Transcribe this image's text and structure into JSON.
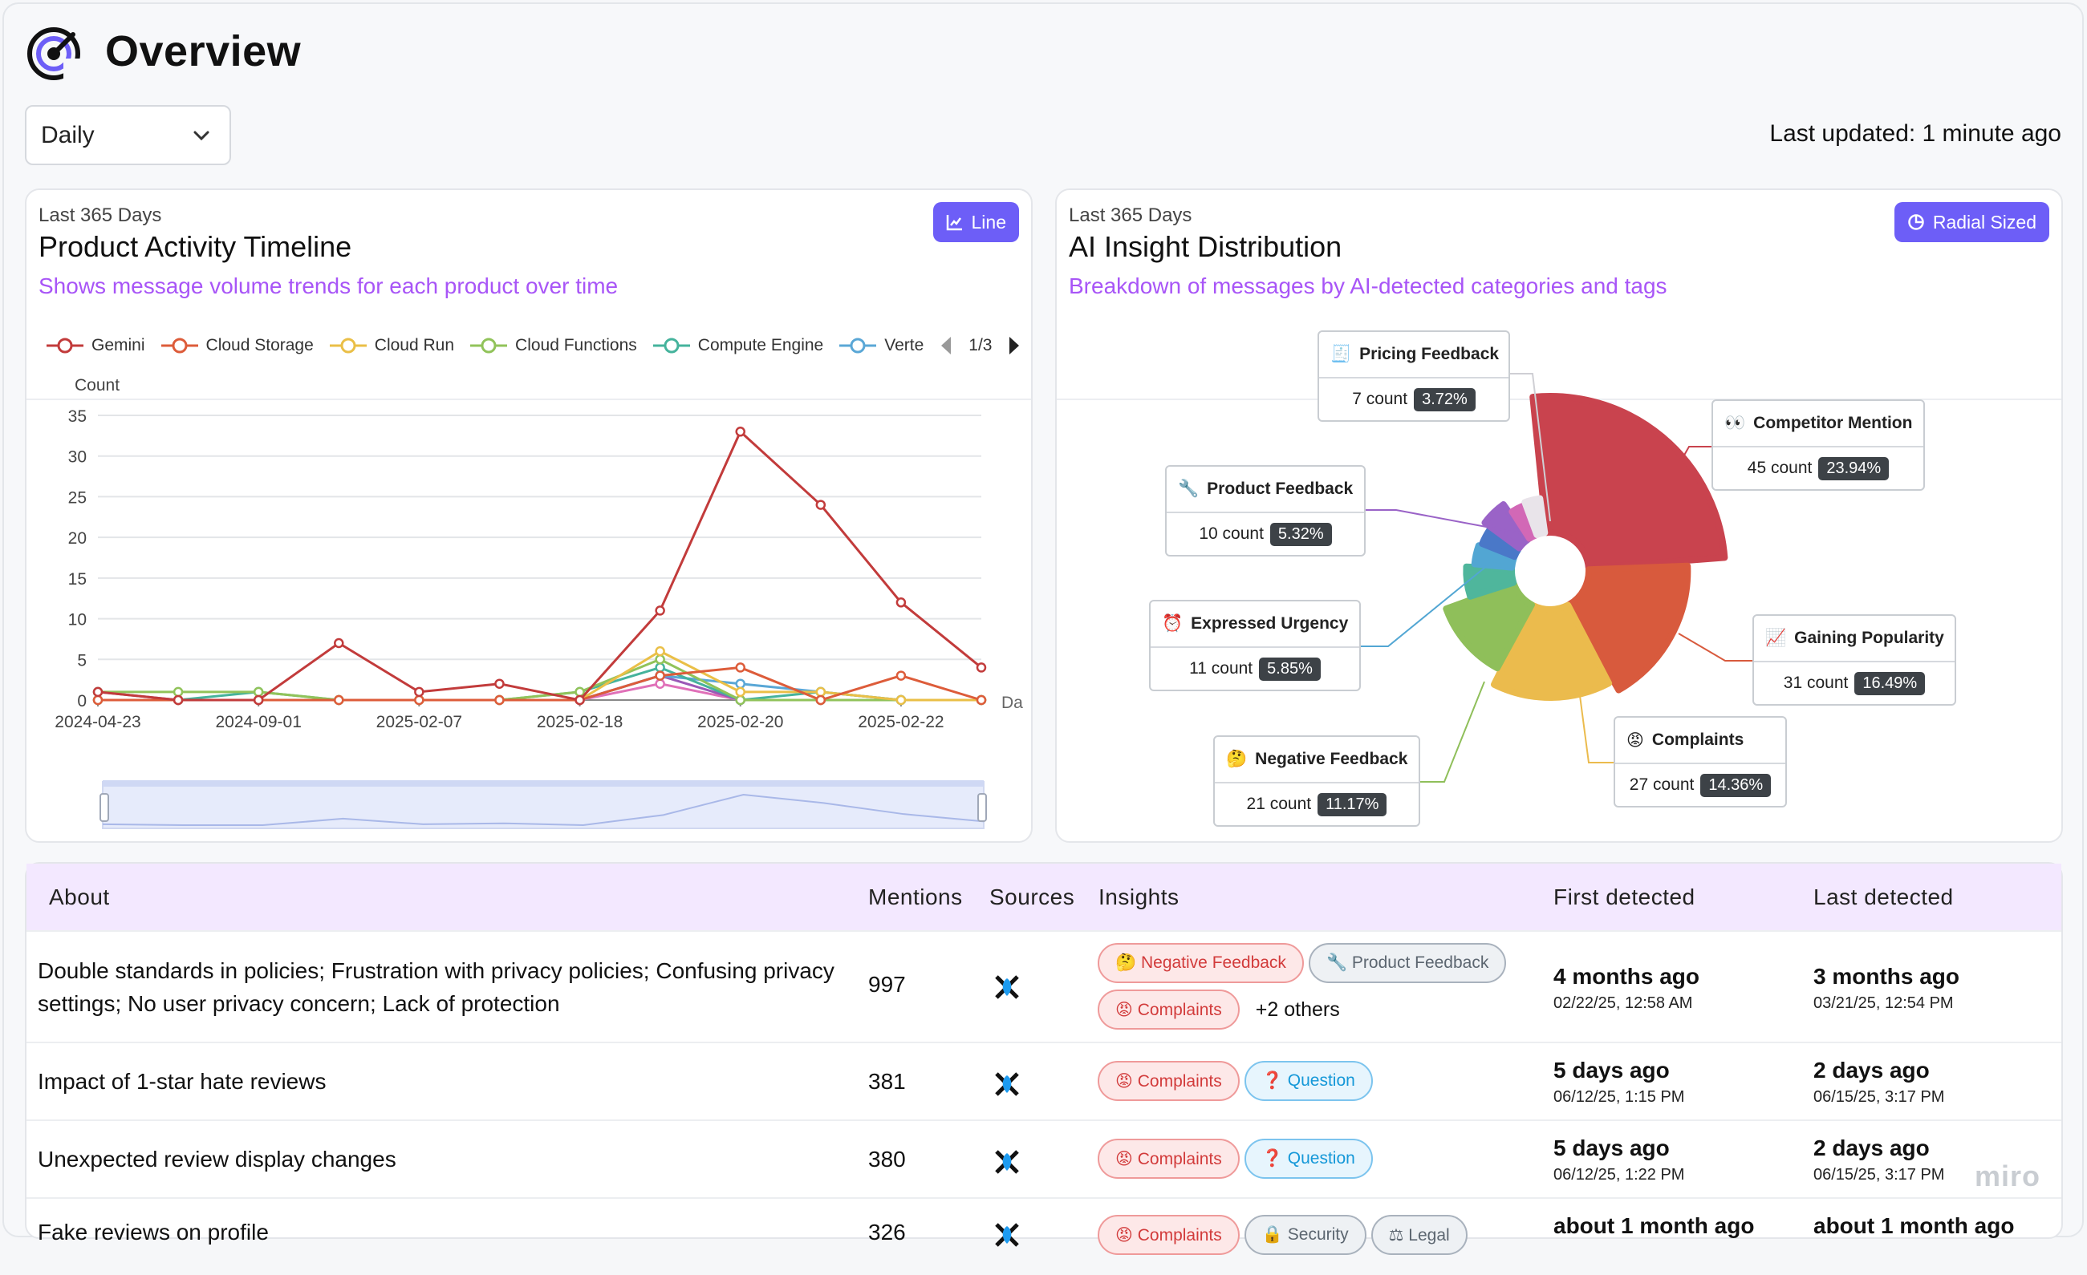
{
  "header": {
    "title": "Overview"
  },
  "controls": {
    "period_select": "Daily",
    "last_updated": "Last updated: 1 minute ago"
  },
  "timeline": {
    "subtitle": "Last 365 Days",
    "title": "Product Activity Timeline",
    "description": "Shows message volume trends for each product over time",
    "chart_type_button": "Line",
    "legend_page": "1/3",
    "chart_data": {
      "type": "line",
      "ylabel": "Count",
      "xlabel": "Da",
      "ylim": [
        0,
        35
      ],
      "yticks": [
        0,
        5,
        10,
        15,
        20,
        25,
        30,
        35
      ],
      "x_labels": [
        "2024-04-23",
        "2024-09-01",
        "2025-02-07",
        "2025-02-18",
        "2025-02-20",
        "2025-02-22"
      ],
      "series": [
        {
          "name": "Gemini",
          "color": "#c23b3b",
          "values": [
            1,
            0,
            0,
            7,
            1,
            2,
            0,
            11,
            33,
            24,
            12,
            4
          ]
        },
        {
          "name": "Cloud Storage",
          "color": "#dd5c3a",
          "values": [
            0,
            0,
            0,
            0,
            0,
            0,
            0,
            3,
            4,
            0,
            3,
            0
          ]
        },
        {
          "name": "Cloud Run",
          "color": "#eabf47",
          "values": [
            0,
            0,
            0,
            0,
            0,
            0,
            0,
            6,
            1,
            1,
            0,
            0
          ]
        },
        {
          "name": "Cloud Functions",
          "color": "#91c35a",
          "values": [
            1,
            1,
            1,
            0,
            0,
            0,
            1,
            5,
            0,
            0,
            0,
            0
          ]
        },
        {
          "name": "Compute Engine",
          "color": "#45b39c",
          "values": [
            0,
            0,
            1,
            0,
            0,
            0,
            1,
            4,
            0,
            1,
            0,
            0
          ]
        },
        {
          "name": "Verte",
          "color": "#5aa7d6",
          "values": [
            0,
            0,
            0,
            0,
            0,
            0,
            0,
            3,
            2,
            1,
            0,
            0
          ]
        },
        {
          "name": "",
          "color": "#9b59b6",
          "values": [
            1,
            0,
            0,
            0,
            0,
            0,
            0,
            3,
            0,
            0,
            0,
            0
          ]
        },
        {
          "name": "",
          "color": "#e070b8",
          "values": [
            0,
            0,
            0,
            0,
            0,
            0,
            0,
            2,
            0,
            0,
            0,
            0
          ]
        }
      ]
    }
  },
  "insights": {
    "subtitle": "Last 365 Days",
    "title": "AI Insight Distribution",
    "description": "Breakdown of messages by AI-detected categories and tags",
    "chart_type_button": "Radial Sized",
    "chart_data": {
      "type": "pie",
      "slices": [
        {
          "label": "Competitor Mention",
          "count": "45 count",
          "pct": "23.94%",
          "value": 45,
          "color": "#c9434e",
          "icon": "👀"
        },
        {
          "label": "Gaining Popularity",
          "count": "31 count",
          "pct": "16.49%",
          "value": 31,
          "color": "#d85a3d",
          "icon": "📈"
        },
        {
          "label": "Complaints",
          "count": "27 count",
          "pct": "14.36%",
          "value": 27,
          "color": "#ebbb4d",
          "icon": "😡"
        },
        {
          "label": "Negative Feedback",
          "count": "21 count",
          "pct": "11.17%",
          "value": 21,
          "color": "#8fbf5a",
          "icon": "🤔"
        },
        {
          "label": "Expressed Urgency",
          "count": "11 count",
          "pct": "5.85%",
          "value": 11,
          "color": "#4fb69c",
          "icon": "⏰"
        },
        {
          "label": "",
          "value": 8,
          "color": "#52a6d3"
        },
        {
          "label": "",
          "value": 7,
          "color": "#4a78c8"
        },
        {
          "label": "Product Feedback",
          "count": "10 count",
          "pct": "5.32%",
          "value": 10,
          "color": "#9a63c7",
          "icon": "🔧"
        },
        {
          "label": "",
          "value": 6,
          "color": "#d268b6"
        },
        {
          "label": "Pricing Feedback",
          "count": "7 count",
          "pct": "3.72%",
          "value": 7,
          "color": "#e9e4ea",
          "icon": "🧾"
        }
      ]
    }
  },
  "table": {
    "headers": {
      "about": "About",
      "mentions": "Mentions",
      "sources": "Sources",
      "insights": "Insights",
      "first": "First detected",
      "last": "Last detected"
    },
    "rows": [
      {
        "about": "Double standards in policies; Frustration with privacy policies; Confusing privacy settings; No user privacy concern; Lack of protection",
        "mentions": "997",
        "tags": [
          "🤔 Negative Feedback",
          "🔧 Product Feedback",
          "😡 Complaints"
        ],
        "others": "+2 others",
        "first_rel": "4 months ago",
        "first_abs": "02/22/25, 12:58 AM",
        "last_rel": "3 months ago",
        "last_abs": "03/21/25, 12:54 PM"
      },
      {
        "about": "Impact of 1-star hate reviews",
        "mentions": "381",
        "tags": [
          "😡 Complaints",
          "❓ Question"
        ],
        "first_rel": "5 days ago",
        "first_abs": "06/12/25, 1:15 PM",
        "last_rel": "2 days ago",
        "last_abs": "06/15/25, 3:17 PM"
      },
      {
        "about": "Unexpected review display changes",
        "mentions": "380",
        "tags": [
          "😡 Complaints",
          "❓ Question"
        ],
        "first_rel": "5 days ago",
        "first_abs": "06/12/25, 1:22 PM",
        "last_rel": "2 days ago",
        "last_abs": "06/15/25, 3:17 PM"
      },
      {
        "about": "Fake reviews on profile",
        "mentions": "326",
        "tags": [
          "😡 Complaints",
          "🔒 Security",
          "⚖ Legal"
        ],
        "first_rel": "about 1 month ago",
        "last_rel": "about 1 month ago"
      }
    ]
  },
  "watermark": "miro"
}
